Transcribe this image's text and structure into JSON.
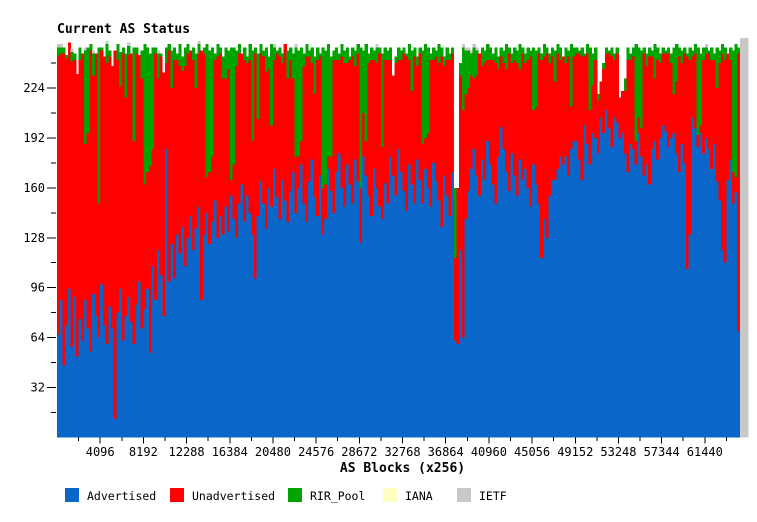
{
  "title": "Current AS Status",
  "x_axis": {
    "title": "AS Blocks (x256)",
    "tick_labels": [
      "4096",
      "8192",
      "12288",
      "16384",
      "20480",
      "24576",
      "28672",
      "32768",
      "36864",
      "40960",
      "45056",
      "49152",
      "53248",
      "57344",
      "61440"
    ],
    "tick_values": [
      4096,
      8192,
      12288,
      16384,
      20480,
      24576,
      28672,
      32768,
      36864,
      40960,
      45056,
      49152,
      53248,
      57344,
      61440
    ],
    "minor_tick_step": 2048,
    "range": [
      0,
      65536
    ]
  },
  "y_axis": {
    "tick_labels": [
      "224",
      "192",
      "160",
      "128",
      "96",
      "64",
      "32"
    ],
    "tick_values": [
      224,
      192,
      160,
      128,
      96,
      64,
      32
    ],
    "minor_tick_values": [
      240,
      208,
      176,
      144,
      112,
      80,
      48,
      16
    ],
    "range": [
      0,
      256
    ]
  },
  "colors": {
    "advertised": "#0a66c8",
    "unadvertised": "#ff0000",
    "rir_pool": "#00a400",
    "iana": "#ffffc0",
    "ietf": "#c8c8c8",
    "axis": "#000000",
    "background": "#ffffff"
  },
  "legend": [
    {
      "label": "Advertised",
      "color": "#0a66c8"
    },
    {
      "label": "Unadvertised",
      "color": "#ff0000"
    },
    {
      "label": "RIR_Pool",
      "color": "#00a400"
    },
    {
      "label": "IANA",
      "color": "#ffffc0"
    },
    {
      "label": "IETF",
      "color": "#c8c8c8"
    }
  ],
  "chart_data": {
    "type": "bar",
    "stacked": true,
    "title": "Current AS Status",
    "xlabel": "AS Blocks (x256)",
    "ylabel": "",
    "xlim": [
      0,
      65536
    ],
    "ylim": [
      0,
      256
    ],
    "grid": false,
    "legend_position": "bottom",
    "block_size": 256,
    "num_blocks": 256,
    "series_order": [
      "advertised",
      "unadvertised",
      "rir_pool",
      "ietf"
    ],
    "iana_per_block": 0,
    "note": "Each entry is [advertised, unadvertised, rir_pool, ietf] AS counts (0-256) per x256 block; values estimated from pixels.",
    "blocks": [
      [
        66,
        178,
        6,
        2
      ],
      [
        88,
        158,
        4,
        2
      ],
      [
        46,
        200,
        4,
        0
      ],
      [
        72,
        171,
        2,
        0
      ],
      [
        95,
        158,
        0,
        0
      ],
      [
        58,
        183,
        6,
        2
      ],
      [
        90,
        152,
        4,
        0
      ],
      [
        52,
        181,
        0,
        0
      ],
      [
        76,
        166,
        8,
        0
      ],
      [
        62,
        184,
        0,
        0
      ],
      [
        88,
        100,
        60,
        2
      ],
      [
        70,
        125,
        55,
        0
      ],
      [
        55,
        193,
        4,
        0
      ],
      [
        92,
        140,
        14,
        2
      ],
      [
        78,
        168,
        0,
        0
      ],
      [
        64,
        86,
        100,
        0
      ],
      [
        98,
        150,
        2,
        0
      ],
      [
        72,
        172,
        0,
        0
      ],
      [
        60,
        180,
        12,
        2
      ],
      [
        84,
        160,
        4,
        0
      ],
      [
        70,
        168,
        0,
        0
      ],
      [
        12,
        236,
        0,
        0
      ],
      [
        80,
        162,
        10,
        0
      ],
      [
        95,
        130,
        22,
        0
      ],
      [
        62,
        184,
        4,
        0
      ],
      [
        78,
        140,
        28,
        0
      ],
      [
        90,
        155,
        6,
        2
      ],
      [
        74,
        172,
        0,
        0
      ],
      [
        60,
        130,
        60,
        0
      ],
      [
        85,
        161,
        4,
        0
      ],
      [
        100,
        145,
        0,
        0
      ],
      [
        70,
        160,
        18,
        0
      ],
      [
        82,
        80,
        90,
        0
      ],
      [
        95,
        75,
        80,
        0
      ],
      [
        54,
        120,
        72,
        0
      ],
      [
        110,
        75,
        65,
        0
      ],
      [
        88,
        158,
        4,
        0
      ],
      [
        120,
        110,
        16,
        2
      ],
      [
        104,
        140,
        2,
        0
      ],
      [
        78,
        156,
        0,
        0
      ],
      [
        185,
        55,
        10,
        0
      ],
      [
        100,
        148,
        4,
        0
      ],
      [
        124,
        100,
        24,
        0
      ],
      [
        102,
        140,
        8,
        0
      ],
      [
        130,
        112,
        4,
        0
      ],
      [
        118,
        120,
        14,
        0
      ],
      [
        135,
        100,
        9,
        0
      ],
      [
        110,
        128,
        12,
        0
      ],
      [
        128,
        118,
        6,
        0
      ],
      [
        142,
        106,
        0,
        0
      ],
      [
        120,
        122,
        8,
        0
      ],
      [
        134,
        90,
        22,
        0
      ],
      [
        148,
        98,
        6,
        2
      ],
      [
        88,
        160,
        0,
        0
      ],
      [
        130,
        116,
        4,
        0
      ],
      [
        144,
        23,
        85,
        0
      ],
      [
        124,
        46,
        78,
        0
      ],
      [
        138,
        42,
        70,
        0
      ],
      [
        152,
        90,
        4,
        0
      ],
      [
        128,
        116,
        8,
        0
      ],
      [
        142,
        104,
        4,
        0
      ],
      [
        130,
        100,
        14,
        0
      ],
      [
        148,
        82,
        20,
        0
      ],
      [
        132,
        104,
        12,
        0
      ],
      [
        155,
        10,
        85,
        0
      ],
      [
        140,
        35,
        75,
        0
      ],
      [
        128,
        110,
        10,
        0
      ],
      [
        150,
        96,
        6,
        0
      ],
      [
        162,
        84,
        0,
        0
      ],
      [
        138,
        104,
        8,
        0
      ],
      [
        155,
        85,
        4,
        0
      ],
      [
        144,
        98,
        10,
        0
      ],
      [
        130,
        60,
        58,
        0
      ],
      [
        102,
        144,
        4,
        0
      ],
      [
        142,
        62,
        42,
        0
      ],
      [
        164,
        82,
        6,
        0
      ],
      [
        150,
        94,
        4,
        0
      ],
      [
        134,
        100,
        16,
        0
      ],
      [
        160,
        76,
        8,
        0
      ],
      [
        148,
        52,
        52,
        0
      ],
      [
        172,
        70,
        8,
        2
      ],
      [
        154,
        92,
        2,
        0
      ],
      [
        140,
        104,
        6,
        0
      ],
      [
        165,
        75,
        6,
        0
      ],
      [
        152,
        100,
        0,
        0
      ],
      [
        138,
        92,
        18,
        0
      ],
      [
        158,
        84,
        8,
        0
      ],
      [
        170,
        60,
        16,
        0
      ],
      [
        144,
        36,
        70,
        2
      ],
      [
        160,
        20,
        68,
        0
      ],
      [
        175,
        15,
        60,
        0
      ],
      [
        150,
        88,
        8,
        0
      ],
      [
        138,
        106,
        8,
        0
      ],
      [
        164,
        80,
        4,
        0
      ],
      [
        178,
        62,
        10,
        0
      ],
      [
        154,
        66,
        24,
        0
      ],
      [
        142,
        100,
        8,
        0
      ],
      [
        168,
        76,
        2,
        0
      ],
      [
        130,
        30,
        90,
        0
      ],
      [
        140,
        22,
        86,
        0
      ],
      [
        172,
        8,
        72,
        0
      ],
      [
        158,
        22,
        64,
        0
      ],
      [
        144,
        98,
        6,
        0
      ],
      [
        170,
        72,
        8,
        0
      ],
      [
        182,
        60,
        4,
        0
      ],
      [
        160,
        84,
        8,
        0
      ],
      [
        148,
        92,
        8,
        0
      ],
      [
        175,
        65,
        10,
        0
      ],
      [
        162,
        80,
        2,
        0
      ],
      [
        150,
        94,
        6,
        0
      ],
      [
        178,
        60,
        10,
        0
      ],
      [
        164,
        82,
        6,
        0
      ],
      [
        125,
        35,
        90,
        0
      ],
      [
        180,
        28,
        40,
        0
      ],
      [
        168,
        22,
        62,
        0
      ],
      [
        155,
        85,
        6,
        0
      ],
      [
        142,
        100,
        8,
        0
      ],
      [
        172,
        70,
        6,
        0
      ],
      [
        160,
        80,
        10,
        2
      ],
      [
        148,
        98,
        4,
        0
      ],
      [
        140,
        46,
        60,
        0
      ],
      [
        163,
        79,
        8,
        0
      ],
      [
        150,
        92,
        6,
        0
      ],
      [
        180,
        62,
        8,
        0
      ],
      [
        168,
        64,
        0,
        0
      ],
      [
        155,
        85,
        4,
        0
      ],
      [
        185,
        57,
        8,
        0
      ],
      [
        170,
        72,
        6,
        0
      ],
      [
        158,
        88,
        4,
        0
      ],
      [
        145,
        99,
        2,
        0
      ],
      [
        175,
        67,
        10,
        0
      ],
      [
        162,
        60,
        26,
        0
      ],
      [
        150,
        94,
        6,
        0
      ],
      [
        178,
        60,
        6,
        0
      ],
      [
        165,
        81,
        4,
        0
      ],
      [
        150,
        38,
        60,
        0
      ],
      [
        172,
        20,
        60,
        0
      ],
      [
        160,
        35,
        55,
        0
      ],
      [
        148,
        94,
        4,
        0
      ],
      [
        176,
        66,
        8,
        0
      ],
      [
        164,
        80,
        4,
        0
      ],
      [
        152,
        88,
        12,
        0
      ],
      [
        135,
        109,
        6,
        0
      ],
      [
        168,
        70,
        6,
        0
      ],
      [
        155,
        87,
        8,
        0
      ],
      [
        142,
        100,
        4,
        0
      ],
      [
        170,
        76,
        4,
        0
      ],
      [
        62,
        53,
        45,
        0
      ],
      [
        60,
        100,
        0,
        0
      ],
      [
        120,
        112,
        8,
        0
      ],
      [
        64,
        146,
        40,
        2
      ],
      [
        140,
        80,
        28,
        2
      ],
      [
        158,
        66,
        24,
        2
      ],
      [
        172,
        60,
        14,
        2
      ],
      [
        185,
        45,
        20,
        2
      ],
      [
        168,
        64,
        16,
        2
      ],
      [
        155,
        91,
        0,
        0
      ],
      [
        178,
        60,
        12,
        0
      ],
      [
        165,
        75,
        8,
        0
      ],
      [
        190,
        52,
        10,
        0
      ],
      [
        175,
        67,
        8,
        0
      ],
      [
        162,
        80,
        4,
        0
      ],
      [
        150,
        90,
        10,
        0
      ],
      [
        180,
        56,
        8,
        0
      ],
      [
        199,
        45,
        6,
        0
      ],
      [
        185,
        55,
        8,
        0
      ],
      [
        170,
        66,
        16,
        0
      ],
      [
        158,
        88,
        4,
        0
      ],
      [
        182,
        58,
        6,
        0
      ],
      [
        168,
        74,
        8,
        0
      ],
      [
        155,
        85,
        8,
        0
      ],
      [
        178,
        58,
        16,
        0
      ],
      [
        165,
        81,
        4,
        0
      ],
      [
        172,
        68,
        6,
        0
      ],
      [
        160,
        82,
        8,
        0
      ],
      [
        148,
        96,
        4,
        0
      ],
      [
        175,
        35,
        40,
        0
      ],
      [
        162,
        50,
        36,
        0
      ],
      [
        150,
        96,
        4,
        0
      ],
      [
        115,
        127,
        4,
        0
      ],
      [
        140,
        104,
        8,
        0
      ],
      [
        128,
        118,
        4,
        0
      ],
      [
        155,
        85,
        6,
        0
      ],
      [
        165,
        79,
        6,
        0
      ],
      [
        165,
        63,
        20,
        0
      ],
      [
        172,
        74,
        6,
        0
      ],
      [
        180,
        62,
        8,
        0
      ],
      [
        175,
        69,
        0,
        0
      ],
      [
        180,
        60,
        10,
        0
      ],
      [
        168,
        76,
        4,
        0
      ],
      [
        185,
        27,
        40,
        0
      ],
      [
        190,
        54,
        6,
        0
      ],
      [
        190,
        56,
        4,
        0
      ],
      [
        178,
        68,
        2,
        0
      ],
      [
        165,
        79,
        6,
        0
      ],
      [
        200,
        44,
        2,
        0
      ],
      [
        188,
        58,
        6,
        0
      ],
      [
        175,
        35,
        40,
        0
      ],
      [
        195,
        31,
        20,
        0
      ],
      [
        192,
        50,
        8,
        0
      ],
      [
        182,
        34,
        4,
        0
      ],
      [
        205,
        23,
        0,
        0
      ],
      [
        195,
        41,
        4,
        0
      ],
      [
        210,
        36,
        4,
        0
      ],
      [
        198,
        48,
        2,
        0
      ],
      [
        186,
        58,
        6,
        0
      ],
      [
        205,
        37,
        4,
        0
      ],
      [
        202,
        44,
        4,
        0
      ],
      [
        192,
        26,
        0,
        0
      ],
      [
        195,
        27,
        0,
        0
      ],
      [
        182,
        40,
        8,
        0
      ],
      [
        170,
        72,
        8,
        0
      ],
      [
        188,
        54,
        4,
        0
      ],
      [
        185,
        59,
        6,
        0
      ],
      [
        175,
        15,
        62,
        0
      ],
      [
        195,
        10,
        45,
        0
      ],
      [
        180,
        18,
        50,
        0
      ],
      [
        168,
        78,
        4,
        0
      ],
      [
        175,
        63,
        8,
        0
      ],
      [
        162,
        82,
        6,
        0
      ],
      [
        185,
        59,
        4,
        0
      ],
      [
        190,
        40,
        22,
        0
      ],
      [
        178,
        64,
        8,
        0
      ],
      [
        192,
        48,
        6,
        0
      ],
      [
        200,
        46,
        4,
        0
      ],
      [
        196,
        50,
        2,
        0
      ],
      [
        186,
        60,
        4,
        0
      ],
      [
        192,
        48,
        6,
        0
      ],
      [
        195,
        25,
        30,
        0
      ],
      [
        182,
        46,
        24,
        0
      ],
      [
        170,
        74,
        6,
        0
      ],
      [
        188,
        52,
        8,
        0
      ],
      [
        176,
        70,
        4,
        0
      ],
      [
        108,
        136,
        2,
        0
      ],
      [
        130,
        112,
        8,
        0
      ],
      [
        205,
        39,
        4,
        0
      ],
      [
        198,
        48,
        6,
        0
      ],
      [
        186,
        8,
        56,
        0
      ],
      [
        195,
        5,
        46,
        0
      ],
      [
        182,
        60,
        8,
        0
      ],
      [
        192,
        54,
        4,
        2
      ],
      [
        185,
        61,
        2,
        0
      ],
      [
        172,
        70,
        8,
        0
      ],
      [
        188,
        54,
        4,
        0
      ],
      [
        164,
        60,
        26,
        0
      ],
      [
        152,
        88,
        8,
        0
      ],
      [
        120,
        126,
        6,
        0
      ],
      [
        112,
        130,
        8,
        0
      ],
      [
        165,
        81,
        0,
        0
      ],
      [
        178,
        64,
        8,
        0
      ],
      [
        150,
        20,
        78,
        0
      ],
      [
        157,
        10,
        85,
        0
      ],
      [
        68,
        178,
        4,
        0
      ],
      [
        0,
        0,
        0,
        256
      ],
      [
        0,
        0,
        0,
        256
      ],
      [
        0,
        0,
        0,
        256
      ]
    ]
  }
}
